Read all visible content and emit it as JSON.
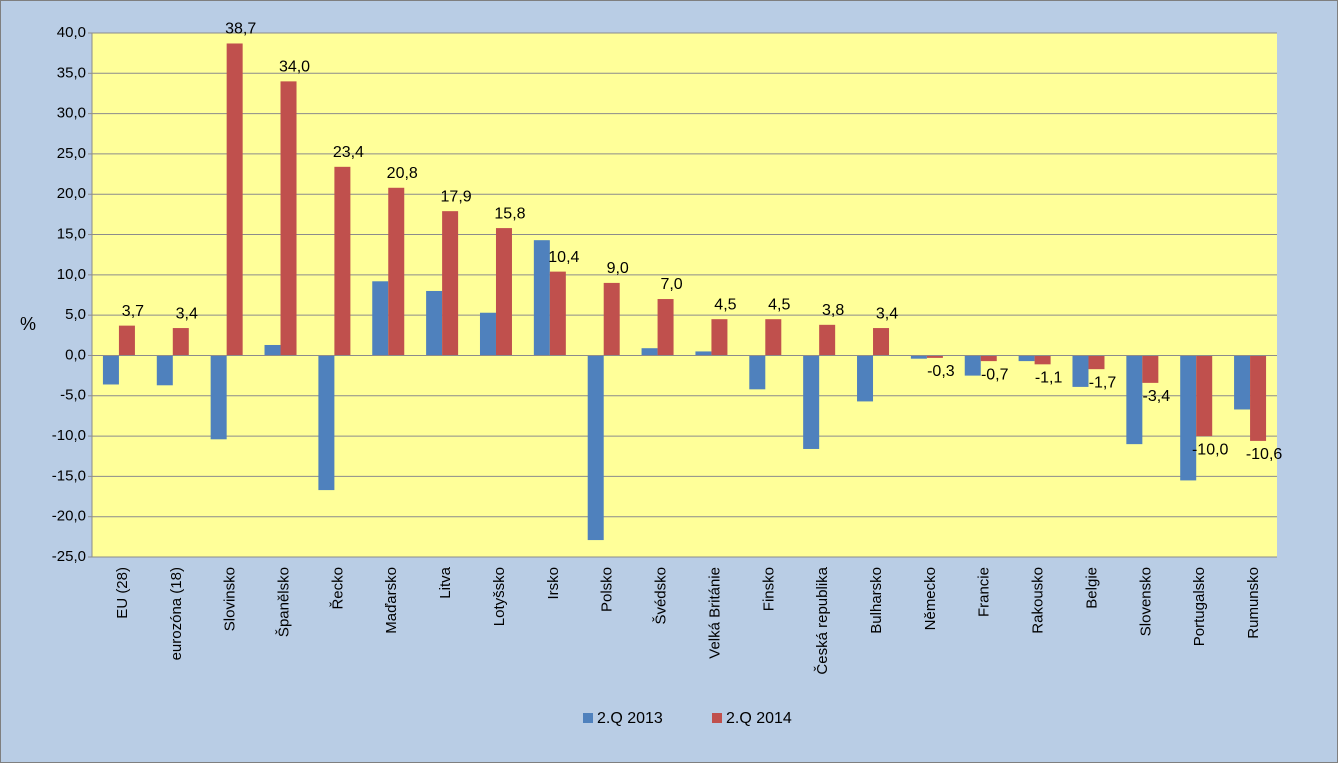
{
  "chart_data": {
    "type": "bar",
    "ylabel": "%",
    "categories": [
      "EU (28)",
      "eurozóna (18)",
      "Slovinsko",
      "Španělsko",
      "Řecko",
      "Maďarsko",
      "Litva",
      "Lotyšsko",
      "Irsko",
      "Polsko",
      "Švédsko",
      "Velká Británie",
      "Finsko",
      "Česká republika",
      "Bulharsko",
      "Německo",
      "Francie",
      "Rakousko",
      "Belgie",
      "Slovensko",
      "Portugalsko",
      "Rumunsko"
    ],
    "series": [
      {
        "name": "2.Q 2013",
        "color": "#4f81bd",
        "values": [
          -3.6,
          -3.7,
          -10.4,
          1.3,
          -16.7,
          9.2,
          8.0,
          5.3,
          14.3,
          -22.9,
          0.9,
          0.5,
          -4.2,
          -11.6,
          -5.7,
          -0.4,
          -2.5,
          -0.7,
          -3.9,
          -11.0,
          -15.5,
          -6.7
        ]
      },
      {
        "name": "2.Q 2014",
        "color": "#c0504d",
        "values": [
          3.7,
          3.4,
          38.7,
          34.0,
          23.4,
          20.8,
          17.9,
          15.8,
          10.4,
          9.0,
          7.0,
          4.5,
          4.5,
          3.8,
          3.4,
          -0.3,
          -0.7,
          -1.1,
          -1.7,
          -3.4,
          -10.0,
          -10.6
        ],
        "value_labels": [
          "3,7",
          "3,4",
          "38,7",
          "34,0",
          "23,4",
          "20,8",
          "17,9",
          "15,8",
          "10,4",
          "9,0",
          "7,0",
          "4,5",
          "4,5",
          "3,8",
          "3,4",
          "-0,3",
          "-0,7",
          "-1,1",
          "-1,7",
          "-3,4",
          "-10,0",
          "-10,6"
        ]
      }
    ],
    "ylim": [
      -25,
      40
    ],
    "yticks": [
      {
        "value": -25,
        "label": "-25,0"
      },
      {
        "value": -20,
        "label": "-20,0"
      },
      {
        "value": -15,
        "label": "-15,0"
      },
      {
        "value": -10,
        "label": "-10,0"
      },
      {
        "value": -5,
        "label": "-5,0"
      },
      {
        "value": 0,
        "label": "0,0"
      },
      {
        "value": 5,
        "label": "5,0"
      },
      {
        "value": 10,
        "label": "10,0"
      },
      {
        "value": 15,
        "label": "15,0"
      },
      {
        "value": 20,
        "label": "20,0"
      },
      {
        "value": 25,
        "label": "25,0"
      },
      {
        "value": 30,
        "label": "30,0"
      },
      {
        "value": 35,
        "label": "35,0"
      },
      {
        "value": 40,
        "label": "40,0"
      }
    ],
    "grid": true,
    "legend": "bottom"
  }
}
